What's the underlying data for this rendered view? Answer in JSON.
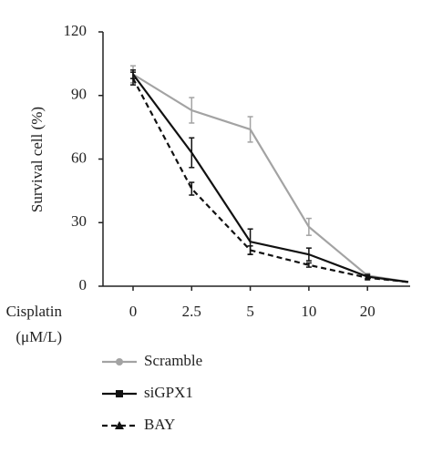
{
  "chart_data": {
    "type": "line",
    "ylabel": "Survival cell (%)",
    "xlabel": [
      "Cisplatin",
      "(μM/L)"
    ],
    "categories": [
      "0",
      "2.5",
      "5",
      "10",
      "20",
      null
    ],
    "ylim": [
      0,
      120
    ],
    "yticks": [
      0,
      30,
      60,
      90,
      120
    ],
    "series": [
      {
        "name": "Scramble",
        "color": "#a3a3a3",
        "marker": "circle",
        "dash": false,
        "values": [
          100,
          83,
          74,
          28,
          5,
          2
        ],
        "errors": [
          4,
          6,
          6,
          4,
          1,
          null
        ]
      },
      {
        "name": "siGPX1",
        "color": "#111111",
        "marker": "square",
        "dash": false,
        "values": [
          100,
          63,
          21,
          15,
          4.5,
          2
        ],
        "errors": [
          2,
          7,
          6,
          3,
          1,
          null
        ]
      },
      {
        "name": "BAY",
        "color": "#111111",
        "marker": "triangle",
        "dash": true,
        "values": [
          98,
          46,
          17,
          10,
          4,
          2
        ],
        "errors": [
          3,
          3,
          2,
          1,
          1,
          null
        ]
      }
    ]
  }
}
